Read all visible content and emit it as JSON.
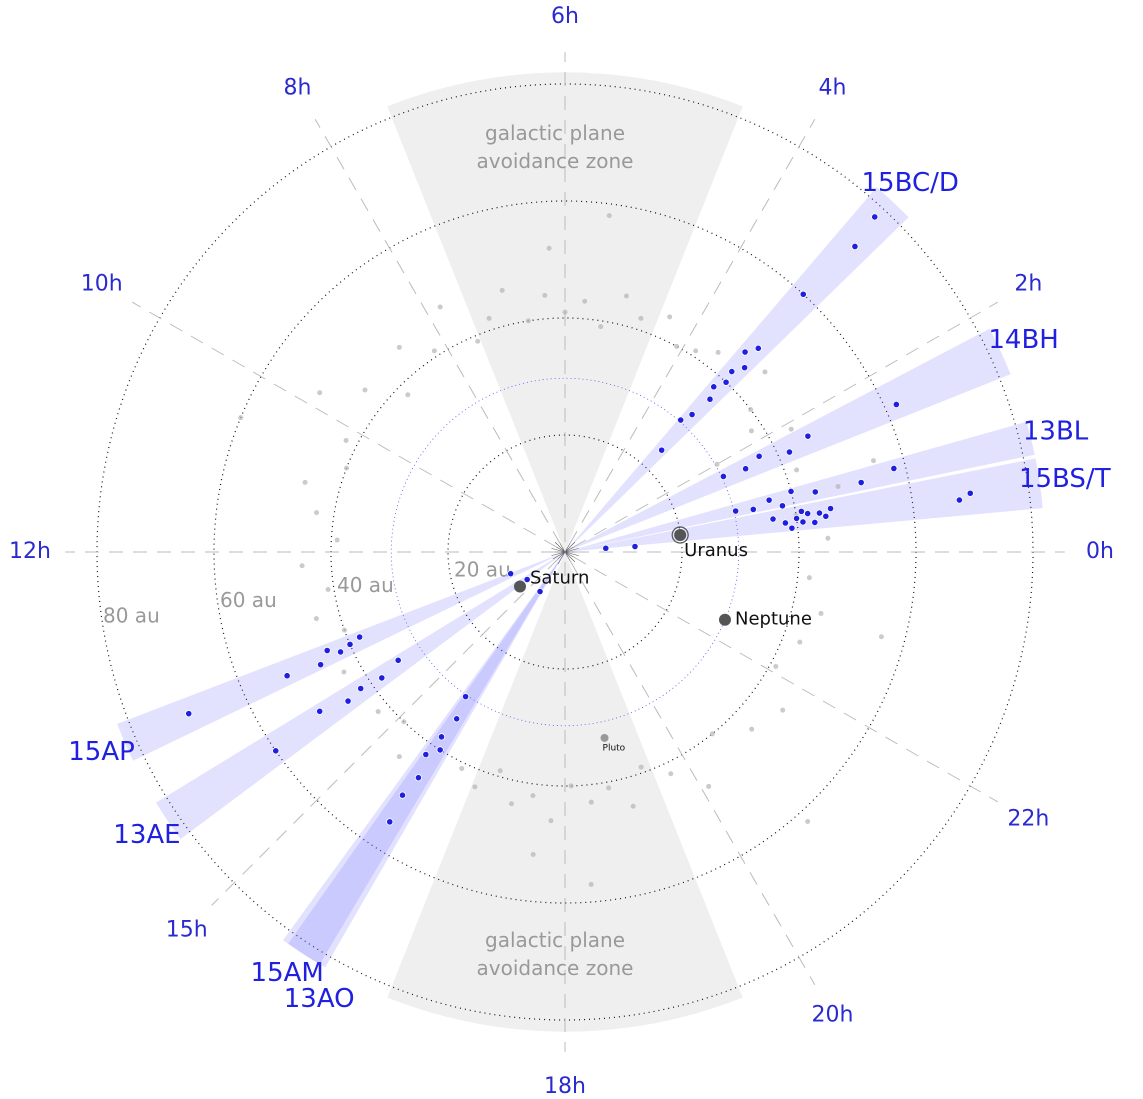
{
  "chart_data": {
    "type": "polar_scatter",
    "rlim": [
      0,
      82
    ],
    "rticks": [
      {
        "value": 20,
        "label": "20 au"
      },
      {
        "value": 40,
        "label": "40 au"
      },
      {
        "value": 60,
        "label": "60 au"
      },
      {
        "value": 80,
        "label": "80 au"
      }
    ],
    "xticks": [
      {
        "value": 0,
        "label": "0h"
      },
      {
        "value": 2,
        "label": "2h"
      },
      {
        "value": 4,
        "label": "4h"
      },
      {
        "value": 6,
        "label": "6h"
      },
      {
        "value": 8,
        "label": "8h"
      },
      {
        "value": 10,
        "label": "10h"
      },
      {
        "value": 12,
        "label": "12h"
      },
      {
        "value": 15,
        "label": "15h"
      },
      {
        "value": 18,
        "label": "18h"
      },
      {
        "value": 20,
        "label": "20h"
      },
      {
        "value": 22,
        "label": "22h"
      }
    ],
    "zones": [
      {
        "label": [
          "galactic plane",
          "avoidance zone"
        ],
        "ra": [
          4.55,
          7.45
        ],
        "color": "#efefef"
      },
      {
        "label": [
          "galactic plane",
          "avoidance zone"
        ],
        "ra": [
          16.55,
          19.45
        ],
        "color": "#efefef"
      }
    ],
    "blocks": [
      {
        "label": "15BC/D",
        "ra": [
          2.95,
          3.3
        ]
      },
      {
        "label": "14BH",
        "ra": [
          1.45,
          1.85
        ]
      },
      {
        "label": "13BL",
        "ra": [
          0.78,
          1.05
        ]
      },
      {
        "label": "15BS/T",
        "ra": [
          0.35,
          0.75
        ]
      },
      {
        "label": "15AP",
        "ra": [
          13.4,
          13.72
        ]
      },
      {
        "label": "13AE",
        "ra": [
          14.1,
          14.45
        ]
      },
      {
        "label": "15AM",
        "ra": [
          15.6,
          15.95
        ]
      },
      {
        "label": "13AO",
        "ra": [
          15.65,
          16.0
        ]
      }
    ],
    "block_color": "rgba(110,110,255,0.2)",
    "planets": [
      {
        "name": "Saturn",
        "ra": 14.5,
        "r": 9.7
      },
      {
        "name": "Uranus",
        "ra": 0.56,
        "r": 19.9
      },
      {
        "name": "Neptune",
        "ra": 22.47,
        "r": 29.7
      },
      {
        "name": "Pluto",
        "ra": 18.8,
        "r": 32.5
      }
    ],
    "series": [
      {
        "color": "#b5b5b5",
        "x": [
          0.2,
          0.6,
          0.9,
          1.3,
          1.9,
          2.2,
          2.5,
          2.8,
          3.5,
          3.8,
          4.1,
          4.4,
          4.8,
          5.1,
          5.4,
          5.7,
          6.0,
          6.3,
          6.6,
          6.9,
          7.2,
          7.5,
          7.8,
          8.2,
          8.6,
          9.0,
          9.4,
          9.8,
          10.2,
          10.6,
          11.0,
          11.4,
          11.8,
          12.2,
          12.6,
          13.0,
          13.3,
          13.9,
          14.7,
          15.1,
          15.4,
          16.3,
          16.6,
          16.9,
          17.2,
          17.5,
          17.8,
          18.1,
          18.4,
          18.7,
          19.0,
          19.3,
          19.7,
          20.1,
          20.6,
          21.1,
          21.6,
          22.1,
          22.6,
          23.1,
          23.6,
          1.1,
          2.0,
          5.5,
          6.2,
          17.6,
          18.3,
          10.5,
          20.8,
          23.0
        ],
        "values": [
          45,
          40,
          48,
          42,
          44,
          38,
          40,
          46,
          43,
          41,
          40,
          44,
          42,
          45,
          39,
          43,
          41,
          44,
          40,
          46,
          42,
          39,
          47,
          41,
          45,
          38,
          44,
          50,
          42,
          40,
          46,
          43,
          39,
          45,
          41,
          44,
          40,
          43,
          42,
          40,
          45,
          41,
          43,
          39,
          44,
          42,
          46,
          40,
          43,
          41,
          45,
          39,
          42,
          47,
          40,
          44,
          46,
          41,
          43,
          45,
          42,
          55,
          30,
          58,
          52,
          52,
          57,
          60,
          62,
          56
        ]
      },
      {
        "color": "#1f1fe0",
        "x": [
          0.5,
          0.55,
          0.6,
          0.45,
          0.52,
          0.65,
          0.4,
          0.58,
          0.48,
          0.62,
          0.55,
          0.5,
          0.6,
          0.35,
          0.3,
          0.9,
          0.85,
          0.95,
          0.8,
          1.0,
          0.9,
          0.88,
          0.95,
          1.7,
          1.65,
          1.75,
          1.6,
          1.7,
          1.6,
          3.1,
          3.15,
          3.1,
          3.2,
          3.1,
          3.15,
          3.05,
          3.2,
          3.1,
          3.15,
          3.1,
          3.15,
          3.25,
          13.5,
          13.55,
          13.6,
          13.5,
          13.65,
          13.6,
          13.55,
          13.45,
          14.2,
          14.3,
          14.25,
          14.3,
          14.2,
          14.3,
          14.4,
          15.7,
          15.8,
          15.75,
          15.85,
          15.7,
          15.8,
          15.75,
          15.8,
          15.85
        ],
        "values": [
          38,
          40,
          42,
          43,
          45,
          41,
          39,
          44,
          41,
          46,
          70,
          68,
          36,
          7,
          12,
          30,
          33,
          36,
          38,
          40,
          44,
          52,
          58,
          30,
          34,
          37,
          42,
          46,
          62,
          24,
          32,
          36,
          38,
          40,
          42,
          44,
          46,
          48,
          60,
          72,
          78,
          30,
          38,
          40,
          42,
          44,
          46,
          52,
          70,
          10,
          34,
          38,
          42,
          45,
          50,
          60,
          8,
          30,
          34,
          38,
          40,
          42,
          46,
          50,
          55,
          8
        ]
      }
    ]
  }
}
